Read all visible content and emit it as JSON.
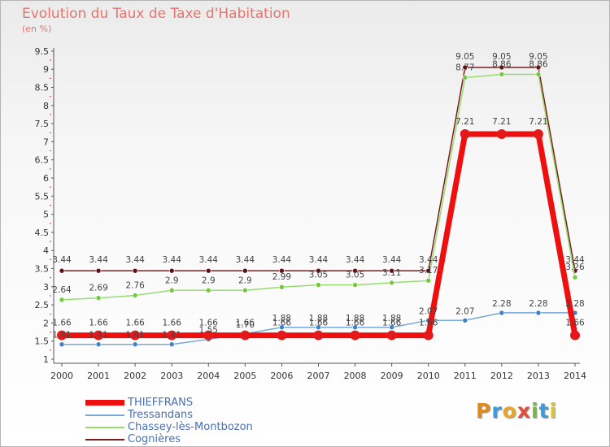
{
  "title": "Evolution du Taux de Taxe d'Habitation",
  "subtitle": "(en %)",
  "logo": {
    "letters": [
      "P",
      "r",
      "o",
      "x",
      "i",
      "t",
      "i"
    ],
    "colors": [
      "#e08a1e",
      "#3e9bd8",
      "#e9a623",
      "#e04d3a",
      "#7ab548",
      "#3e9bd8",
      "#d9c431"
    ]
  },
  "chart_data": {
    "type": "line",
    "title": "Evolution du Taux de Taxe d'Habitation",
    "ylabel": "(en %)",
    "xlabel": "",
    "ylim": [
      1,
      9.5
    ],
    "y_ticks": [
      "1",
      "1.5",
      "2",
      "2.5",
      "3",
      "3.5",
      "4",
      "4.5",
      "5",
      "5.5",
      "6",
      "6.5",
      "7",
      "7.5",
      "8",
      "8.5",
      "9",
      "9.5"
    ],
    "x": [
      "2000",
      "2001",
      "2002",
      "2003",
      "2004",
      "2005",
      "2006",
      "2007",
      "2008",
      "2009",
      "2010",
      "2011",
      "2012",
      "2013",
      "2014"
    ],
    "grid": false,
    "legend_position": "bottom-left",
    "series": [
      {
        "name": "Cognières",
        "color": "#7a1c1c",
        "dot": "#5e1010",
        "values": [
          3.44,
          3.44,
          3.44,
          3.44,
          3.44,
          3.44,
          3.44,
          3.44,
          3.44,
          3.44,
          3.44,
          9.05,
          9.05,
          9.05,
          3.44
        ],
        "labels": [
          "3.44",
          "3.44",
          "3.44",
          "3.44",
          "3.44",
          "3.44",
          "3.44",
          "3.44",
          "3.44",
          "3.44",
          "3.44",
          "9.05",
          "9.05",
          "9.05",
          "3.44"
        ]
      },
      {
        "name": "Chassey-lès-Montbozon",
        "color": "#96dc6e",
        "dot": "#74c83c",
        "values": [
          2.64,
          2.69,
          2.76,
          2.9,
          2.9,
          2.9,
          2.99,
          3.05,
          3.05,
          3.11,
          3.17,
          8.77,
          8.86,
          8.86,
          3.26
        ],
        "labels": [
          "2.64",
          "2.69",
          "2.76",
          "2.9",
          "2.9",
          "2.9",
          "2.99",
          "3.05",
          "3.05",
          "3.11",
          "3.17",
          "8.77",
          "8.86",
          "8.86",
          "3.26"
        ]
      },
      {
        "name": "Tressandans",
        "color": "#78a8d8",
        "dot": "#3e82c8",
        "values": [
          1.41,
          1.41,
          1.41,
          1.41,
          1.55,
          1.7,
          1.88,
          1.88,
          1.88,
          1.88,
          2.07,
          2.07,
          2.28,
          2.28,
          2.28
        ],
        "labels": [
          "1.41",
          "1.41",
          "1.41",
          "1.41",
          "1.55",
          "1.70",
          "1.88",
          "1.88",
          "1.88",
          "1.88",
          "2.07",
          "2.07",
          "2.28",
          "2.28",
          "2.28"
        ]
      },
      {
        "name": "THIEFFRANS",
        "color": "#ee0f0f",
        "dot": "#e41a1a",
        "values": [
          1.66,
          1.66,
          1.66,
          1.66,
          1.66,
          1.66,
          1.66,
          1.66,
          1.66,
          1.66,
          1.66,
          7.21,
          7.21,
          7.21,
          1.66
        ],
        "labels": [
          "1.66",
          "1.66",
          "1.66",
          "1.66",
          "1.66",
          "1.66",
          "1.66",
          "1.66",
          "1.66",
          "1.66",
          "1.66",
          "7.21",
          "7.21",
          "7.21",
          "1.66"
        ]
      }
    ],
    "legend": [
      "THIEFFRANS",
      "Tressandans",
      "Chassey-lès-Montbozon",
      "Cognières"
    ]
  }
}
